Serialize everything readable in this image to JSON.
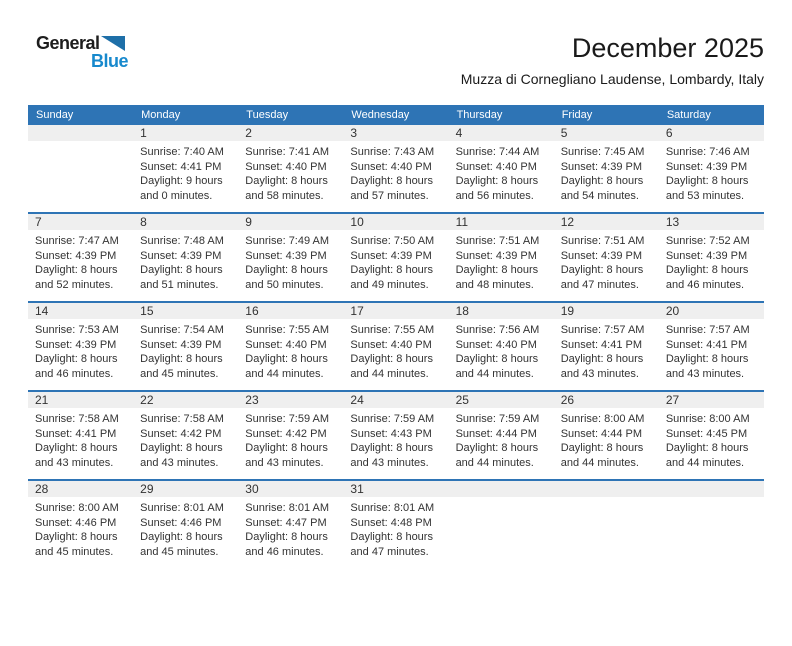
{
  "logo": {
    "general": "General",
    "blue": "Blue"
  },
  "title": "December 2025",
  "subtitle": "Muzza di Cornegliano Laudense, Lombardy, Italy",
  "weekdays": [
    "Sunday",
    "Monday",
    "Tuesday",
    "Wednesday",
    "Thursday",
    "Friday",
    "Saturday"
  ],
  "colors": {
    "header_bg": "#2E74B5",
    "row_separator": "#2E74B5",
    "number_strip_bg": "#EFEFEF",
    "logo_blue": "#1789CD",
    "logo_triangle_blue": "#1E6FA8",
    "body_text": "#333333"
  },
  "weeks": [
    [
      null,
      {
        "day": "1",
        "sunrise": "Sunrise: 7:40 AM",
        "sunset": "Sunset: 4:41 PM",
        "daylight1": "Daylight: 9 hours",
        "daylight2": "and 0 minutes."
      },
      {
        "day": "2",
        "sunrise": "Sunrise: 7:41 AM",
        "sunset": "Sunset: 4:40 PM",
        "daylight1": "Daylight: 8 hours",
        "daylight2": "and 58 minutes."
      },
      {
        "day": "3",
        "sunrise": "Sunrise: 7:43 AM",
        "sunset": "Sunset: 4:40 PM",
        "daylight1": "Daylight: 8 hours",
        "daylight2": "and 57 minutes."
      },
      {
        "day": "4",
        "sunrise": "Sunrise: 7:44 AM",
        "sunset": "Sunset: 4:40 PM",
        "daylight1": "Daylight: 8 hours",
        "daylight2": "and 56 minutes."
      },
      {
        "day": "5",
        "sunrise": "Sunrise: 7:45 AM",
        "sunset": "Sunset: 4:39 PM",
        "daylight1": "Daylight: 8 hours",
        "daylight2": "and 54 minutes."
      },
      {
        "day": "6",
        "sunrise": "Sunrise: 7:46 AM",
        "sunset": "Sunset: 4:39 PM",
        "daylight1": "Daylight: 8 hours",
        "daylight2": "and 53 minutes."
      }
    ],
    [
      {
        "day": "7",
        "sunrise": "Sunrise: 7:47 AM",
        "sunset": "Sunset: 4:39 PM",
        "daylight1": "Daylight: 8 hours",
        "daylight2": "and 52 minutes."
      },
      {
        "day": "8",
        "sunrise": "Sunrise: 7:48 AM",
        "sunset": "Sunset: 4:39 PM",
        "daylight1": "Daylight: 8 hours",
        "daylight2": "and 51 minutes."
      },
      {
        "day": "9",
        "sunrise": "Sunrise: 7:49 AM",
        "sunset": "Sunset: 4:39 PM",
        "daylight1": "Daylight: 8 hours",
        "daylight2": "and 50 minutes."
      },
      {
        "day": "10",
        "sunrise": "Sunrise: 7:50 AM",
        "sunset": "Sunset: 4:39 PM",
        "daylight1": "Daylight: 8 hours",
        "daylight2": "and 49 minutes."
      },
      {
        "day": "11",
        "sunrise": "Sunrise: 7:51 AM",
        "sunset": "Sunset: 4:39 PM",
        "daylight1": "Daylight: 8 hours",
        "daylight2": "and 48 minutes."
      },
      {
        "day": "12",
        "sunrise": "Sunrise: 7:51 AM",
        "sunset": "Sunset: 4:39 PM",
        "daylight1": "Daylight: 8 hours",
        "daylight2": "and 47 minutes."
      },
      {
        "day": "13",
        "sunrise": "Sunrise: 7:52 AM",
        "sunset": "Sunset: 4:39 PM",
        "daylight1": "Daylight: 8 hours",
        "daylight2": "and 46 minutes."
      }
    ],
    [
      {
        "day": "14",
        "sunrise": "Sunrise: 7:53 AM",
        "sunset": "Sunset: 4:39 PM",
        "daylight1": "Daylight: 8 hours",
        "daylight2": "and 46 minutes."
      },
      {
        "day": "15",
        "sunrise": "Sunrise: 7:54 AM",
        "sunset": "Sunset: 4:39 PM",
        "daylight1": "Daylight: 8 hours",
        "daylight2": "and 45 minutes."
      },
      {
        "day": "16",
        "sunrise": "Sunrise: 7:55 AM",
        "sunset": "Sunset: 4:40 PM",
        "daylight1": "Daylight: 8 hours",
        "daylight2": "and 44 minutes."
      },
      {
        "day": "17",
        "sunrise": "Sunrise: 7:55 AM",
        "sunset": "Sunset: 4:40 PM",
        "daylight1": "Daylight: 8 hours",
        "daylight2": "and 44 minutes."
      },
      {
        "day": "18",
        "sunrise": "Sunrise: 7:56 AM",
        "sunset": "Sunset: 4:40 PM",
        "daylight1": "Daylight: 8 hours",
        "daylight2": "and 44 minutes."
      },
      {
        "day": "19",
        "sunrise": "Sunrise: 7:57 AM",
        "sunset": "Sunset: 4:41 PM",
        "daylight1": "Daylight: 8 hours",
        "daylight2": "and 43 minutes."
      },
      {
        "day": "20",
        "sunrise": "Sunrise: 7:57 AM",
        "sunset": "Sunset: 4:41 PM",
        "daylight1": "Daylight: 8 hours",
        "daylight2": "and 43 minutes."
      }
    ],
    [
      {
        "day": "21",
        "sunrise": "Sunrise: 7:58 AM",
        "sunset": "Sunset: 4:41 PM",
        "daylight1": "Daylight: 8 hours",
        "daylight2": "and 43 minutes."
      },
      {
        "day": "22",
        "sunrise": "Sunrise: 7:58 AM",
        "sunset": "Sunset: 4:42 PM",
        "daylight1": "Daylight: 8 hours",
        "daylight2": "and 43 minutes."
      },
      {
        "day": "23",
        "sunrise": "Sunrise: 7:59 AM",
        "sunset": "Sunset: 4:42 PM",
        "daylight1": "Daylight: 8 hours",
        "daylight2": "and 43 minutes."
      },
      {
        "day": "24",
        "sunrise": "Sunrise: 7:59 AM",
        "sunset": "Sunset: 4:43 PM",
        "daylight1": "Daylight: 8 hours",
        "daylight2": "and 43 minutes."
      },
      {
        "day": "25",
        "sunrise": "Sunrise: 7:59 AM",
        "sunset": "Sunset: 4:44 PM",
        "daylight1": "Daylight: 8 hours",
        "daylight2": "and 44 minutes."
      },
      {
        "day": "26",
        "sunrise": "Sunrise: 8:00 AM",
        "sunset": "Sunset: 4:44 PM",
        "daylight1": "Daylight: 8 hours",
        "daylight2": "and 44 minutes."
      },
      {
        "day": "27",
        "sunrise": "Sunrise: 8:00 AM",
        "sunset": "Sunset: 4:45 PM",
        "daylight1": "Daylight: 8 hours",
        "daylight2": "and 44 minutes."
      }
    ],
    [
      {
        "day": "28",
        "sunrise": "Sunrise: 8:00 AM",
        "sunset": "Sunset: 4:46 PM",
        "daylight1": "Daylight: 8 hours",
        "daylight2": "and 45 minutes."
      },
      {
        "day": "29",
        "sunrise": "Sunrise: 8:01 AM",
        "sunset": "Sunset: 4:46 PM",
        "daylight1": "Daylight: 8 hours",
        "daylight2": "and 45 minutes."
      },
      {
        "day": "30",
        "sunrise": "Sunrise: 8:01 AM",
        "sunset": "Sunset: 4:47 PM",
        "daylight1": "Daylight: 8 hours",
        "daylight2": "and 46 minutes."
      },
      {
        "day": "31",
        "sunrise": "Sunrise: 8:01 AM",
        "sunset": "Sunset: 4:48 PM",
        "daylight1": "Daylight: 8 hours",
        "daylight2": "and 47 minutes."
      },
      null,
      null,
      null
    ]
  ]
}
